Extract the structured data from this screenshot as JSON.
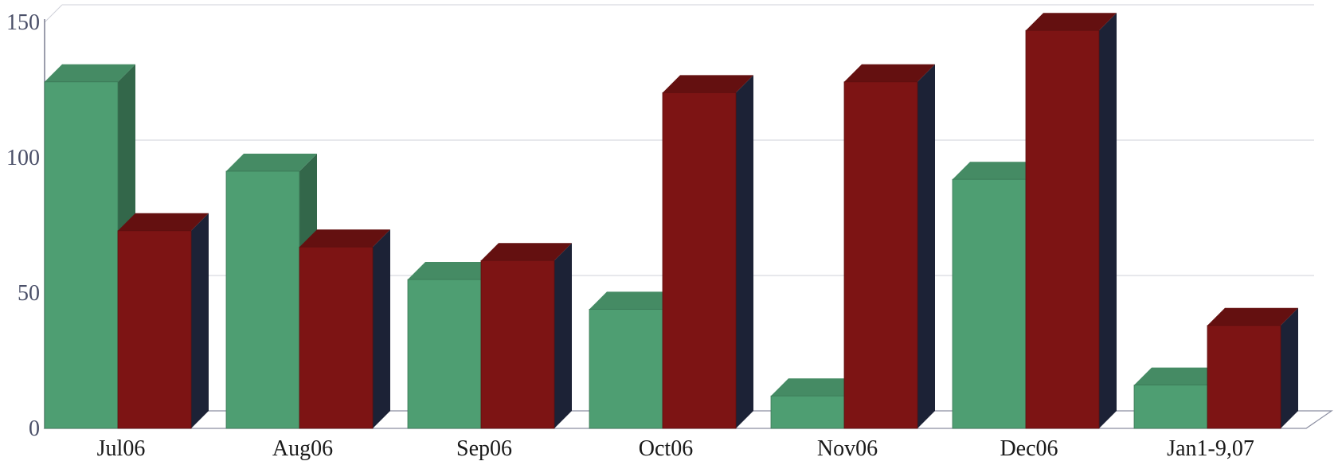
{
  "chart_data": {
    "type": "bar",
    "style": "3d-clustered",
    "categories": [
      "Jul06",
      "Aug06",
      "Sep06",
      "Oct06",
      "Nov06",
      "Dec06",
      "Jan1-9,07"
    ],
    "series": [
      {
        "values": [
          128,
          95,
          55,
          44,
          12,
          92,
          16
        ],
        "color": "#4e9e72"
      },
      {
        "values": [
          73,
          67,
          62,
          124,
          128,
          147,
          38
        ],
        "color": "#7d1414"
      }
    ],
    "yticks": [
      "0",
      "50",
      "100",
      "150"
    ],
    "ylim": [
      0,
      150
    ],
    "grid": true
  }
}
